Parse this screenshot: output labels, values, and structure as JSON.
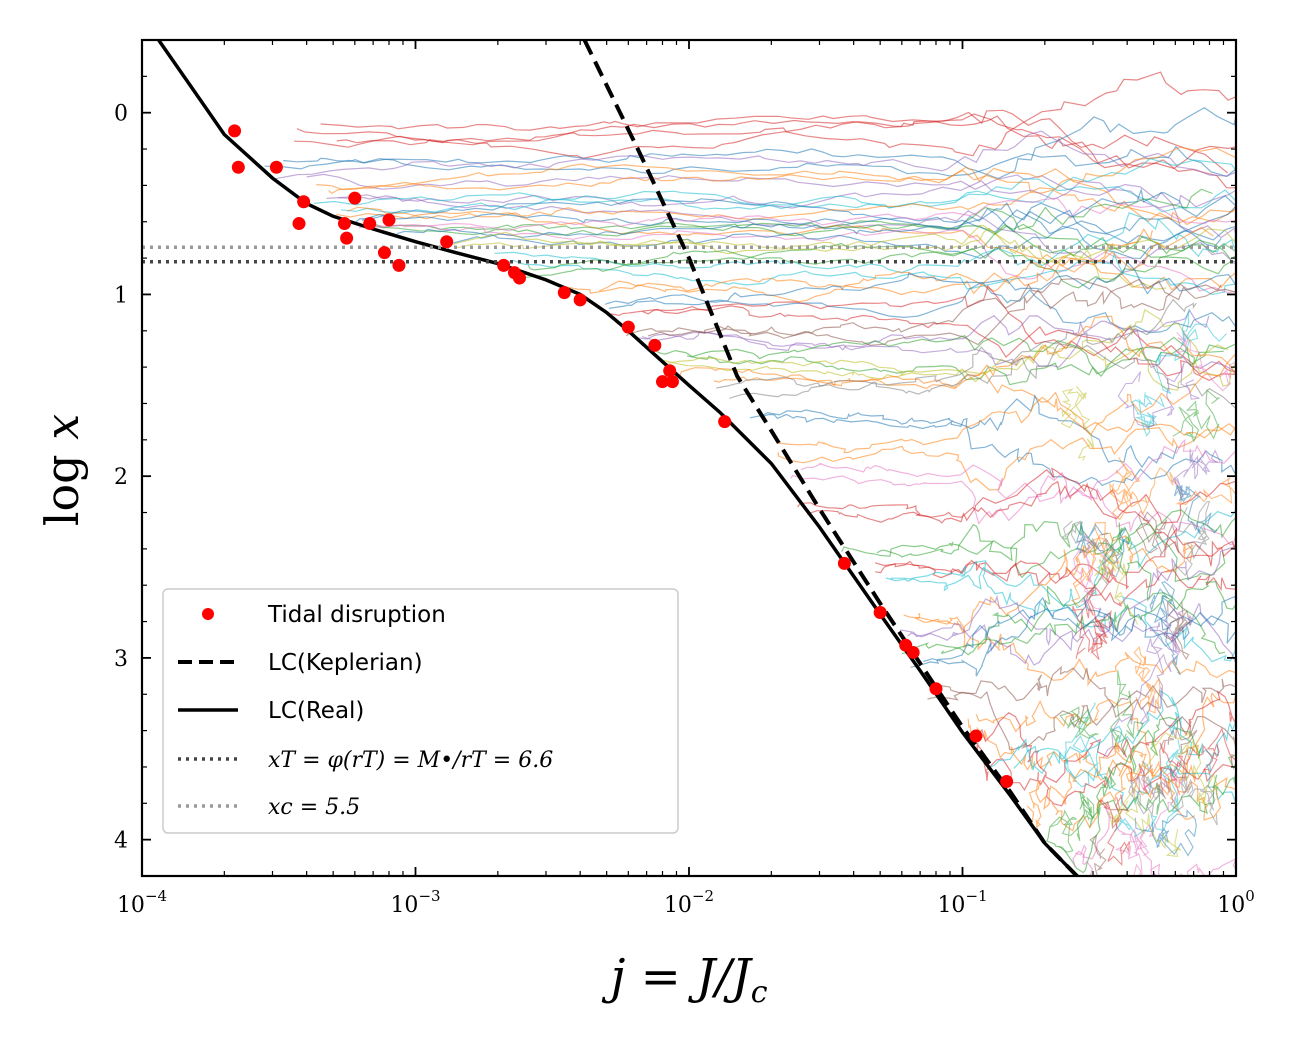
{
  "chart_data": {
    "type": "line",
    "xscale": "log",
    "xlim": [
      0.0001,
      1
    ],
    "ylim": [
      4.2,
      -0.4
    ],
    "yaxis_inverted": true,
    "xlabel": "j = J/Jc",
    "ylabel": "log x",
    "x_ticks": [
      {
        "value": 0.0001,
        "base": "10",
        "exp": "−4"
      },
      {
        "value": 0.001,
        "base": "10",
        "exp": "−3"
      },
      {
        "value": 0.01,
        "base": "10",
        "exp": "−2"
      },
      {
        "value": 0.1,
        "base": "10",
        "exp": "−1"
      },
      {
        "value": 1,
        "base": "10",
        "exp": "0"
      }
    ],
    "y_ticks": [
      {
        "value": 0,
        "label": "0"
      },
      {
        "value": 1,
        "label": "1"
      },
      {
        "value": 2,
        "label": "2"
      },
      {
        "value": 3,
        "label": "3"
      },
      {
        "value": 4,
        "label": "4"
      }
    ],
    "series": [
      {
        "name": "LC(Keplerian)",
        "style": "dashed",
        "color": "#000000",
        "x": [
          0.00415,
          0.0065,
          0.01,
          0.015,
          0.02,
          0.03,
          0.05,
          0.07,
          0.1,
          0.15,
          0.2,
          0.27
        ],
        "y": [
          -0.4,
          0.2,
          0.8,
          1.45,
          1.75,
          2.18,
          2.7,
          3.03,
          3.38,
          3.74,
          4.02,
          4.22
        ]
      },
      {
        "name": "LC(Real)",
        "style": "solid",
        "color": "#000000",
        "x": [
          0.000115,
          0.00015,
          0.0002,
          0.0003,
          0.0004,
          0.0005,
          0.0007,
          0.001,
          0.0014,
          0.002,
          0.003,
          0.004,
          0.005,
          0.006,
          0.008,
          0.01,
          0.013,
          0.02,
          0.03,
          0.05,
          0.07,
          0.1,
          0.15,
          0.2,
          0.27
        ],
        "y": [
          -0.4,
          -0.15,
          0.12,
          0.36,
          0.5,
          0.57,
          0.64,
          0.71,
          0.77,
          0.83,
          0.92,
          1.0,
          1.1,
          1.2,
          1.37,
          1.5,
          1.65,
          1.93,
          2.28,
          2.76,
          3.07,
          3.41,
          3.76,
          4.02,
          4.22
        ]
      },
      {
        "name": "Tidal disruption",
        "style": "points",
        "color": "#ff0000",
        "x": [
          0.000218,
          0.000225,
          0.00031,
          0.000375,
          0.00039,
          0.00055,
          0.00056,
          0.0006,
          0.00068,
          0.00077,
          0.0008,
          0.00087,
          0.0013,
          0.0021,
          0.0023,
          0.0024,
          0.0035,
          0.004,
          0.006,
          0.0075,
          0.008,
          0.0085,
          0.0087,
          0.0135,
          0.037,
          0.05,
          0.062,
          0.066,
          0.08,
          0.112,
          0.145
        ],
        "y": [
          0.1,
          0.3,
          0.3,
          0.61,
          0.49,
          0.61,
          0.69,
          0.47,
          0.61,
          0.77,
          0.59,
          0.84,
          0.71,
          0.84,
          0.88,
          0.91,
          0.99,
          1.03,
          1.18,
          1.28,
          1.48,
          1.42,
          1.48,
          1.7,
          2.48,
          2.75,
          2.93,
          2.97,
          3.17,
          3.43,
          3.68
        ]
      },
      {
        "name": "x_T = φ(r_T) = M•/r_T = 6.6",
        "style": "dotted",
        "color": "#444444",
        "x": [
          0.0001,
          1
        ],
        "y": [
          0.82,
          0.82
        ]
      },
      {
        "name": "x_c = 5.5",
        "style": "dotted",
        "color": "#999999",
        "x": [
          0.0001,
          1
        ],
        "y": [
          0.74,
          0.74
        ]
      }
    ],
    "legend": {
      "placement": "lower-left",
      "entries": [
        {
          "label": "Tidal disruption",
          "kind": "text"
        },
        {
          "label": "LC(Keplerian)",
          "kind": "text"
        },
        {
          "label": "LC(Real)",
          "kind": "text"
        },
        {
          "label": "xT = φ(rT) = M•/rT = 6.6",
          "kind": "math"
        },
        {
          "label": "xc = 5.5",
          "kind": "math"
        }
      ]
    },
    "trajectory_colors": [
      "#1f77b4",
      "#ff7f0e",
      "#2ca02c",
      "#d62728",
      "#9467bd",
      "#8c564b",
      "#e377c2",
      "#7f7f7f",
      "#bcbd22",
      "#17becf"
    ]
  }
}
